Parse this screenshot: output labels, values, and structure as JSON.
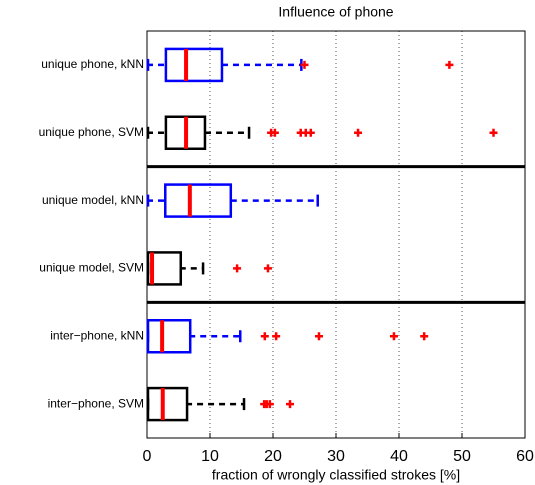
{
  "chart_data": {
    "type": "box",
    "title": "Influence of phone",
    "xlabel": "fraction of wrongly classified strokes [%]",
    "categories": [
      "unique phone, kNN",
      "unique phone, SVM",
      "unique model, kNN",
      "unique model, SVM",
      "inter−phone, kNN",
      "inter−phone, SVM"
    ],
    "colors": [
      "#0000ff",
      "#000000",
      "#0000ff",
      "#000000",
      "#0000ff",
      "#000000"
    ],
    "median_color": "#ff0000",
    "outlier_color": "#ff0000",
    "boxes": [
      {
        "min": 0,
        "q1": 3.0,
        "median": 6.2,
        "q3": 11.9,
        "max": 24.5,
        "outliers": [
          25,
          48
        ]
      },
      {
        "min": 0,
        "q1": 3.0,
        "median": 6.2,
        "q3": 9.2,
        "max": 16.2,
        "outliers": [
          19.7,
          20.3,
          24.4,
          25.2,
          26,
          33.5,
          55
        ]
      },
      {
        "min": 0,
        "q1": 2.9,
        "median": 6.8,
        "q3": 13.3,
        "max": 27.1,
        "outliers": []
      },
      {
        "min": 0,
        "q1": 0,
        "median": 0.8,
        "q3": 5.2,
        "max": 8.9,
        "outliers": [
          14.3,
          19.2
        ]
      },
      {
        "min": 0,
        "q1": 0,
        "median": 2.4,
        "q3": 6.7,
        "max": 14.8,
        "outliers": [
          18.7,
          20.5,
          27.3,
          39.2,
          44
        ]
      },
      {
        "min": 0,
        "q1": 0,
        "median": 2.5,
        "q3": 6.2,
        "max": 15.4,
        "outliers": [
          18.6,
          19.0,
          19.5,
          22.7
        ]
      }
    ],
    "xlim": [
      0,
      60
    ],
    "xticks": [
      0,
      10,
      20,
      30,
      40,
      50,
      60
    ],
    "grid": true
  }
}
